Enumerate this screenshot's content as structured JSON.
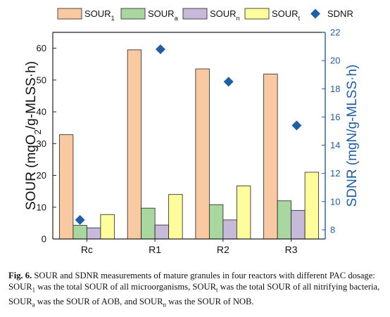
{
  "chart_data": {
    "type": "bar",
    "categories": [
      "Rc",
      "R1",
      "R2",
      "R3"
    ],
    "series": [
      {
        "name": "SOUR1",
        "name_main": "SOUR",
        "name_sub": "1",
        "color": "#f9c9a1",
        "values": [
          32.8,
          59.5,
          53.5,
          51.9
        ]
      },
      {
        "name": "SOURa",
        "name_main": "SOUR",
        "name_sub": "a",
        "color": "#a8d8a0",
        "values": [
          4.3,
          9.7,
          10.8,
          12.0
        ]
      },
      {
        "name": "SOURn",
        "name_main": "SOUR",
        "name_sub": "n",
        "color": "#c6b9d9",
        "values": [
          3.5,
          4.4,
          6.0,
          9.0
        ]
      },
      {
        "name": "SOURt",
        "name_main": "SOUR",
        "name_sub": "t",
        "color": "#fdfd9c",
        "values": [
          7.7,
          14.0,
          16.7,
          21.0
        ]
      }
    ],
    "secondary_series": {
      "name": "SDNR",
      "type": "scatter",
      "marker": "diamond",
      "color": "#1f5fa6",
      "values": [
        8.7,
        20.8,
        18.5,
        15.4
      ]
    },
    "ylabel_left": {
      "main": "SOUR (mgO",
      "sub": "2",
      "rest": "/g-MLSS·h)"
    },
    "ylabel_right": "SDNR (mgN/g-MLSS·h)",
    "ylim_left": [
      0,
      65
    ],
    "ylim_right": [
      7.35,
      22
    ],
    "yticks_left": [
      "0",
      "10",
      "20",
      "30",
      "40",
      "50",
      "60"
    ],
    "yticks_right": [
      "8",
      "10",
      "12",
      "14",
      "16",
      "18",
      "20",
      "22"
    ],
    "right_axis_color": "#1f5fa6",
    "legend_position": "top"
  },
  "caption": {
    "fig_label": "Fig. 6.",
    "parts": [
      {
        "t": " SOUR and SDNR measurements of mature granules in four reactors with different PAC dosage: SOUR"
      },
      {
        "sub": "1"
      },
      {
        "t": " was the total SOUR of all microorganisms, SOUR"
      },
      {
        "sub": "t"
      },
      {
        "t": " was the total SOUR of all nitrifying bacteria, SOUR"
      },
      {
        "sub": "a"
      },
      {
        "t": " was the SOUR of AOB, and SOUR"
      },
      {
        "sub": "n"
      },
      {
        "t": " was the SOUR of NOB."
      }
    ]
  }
}
